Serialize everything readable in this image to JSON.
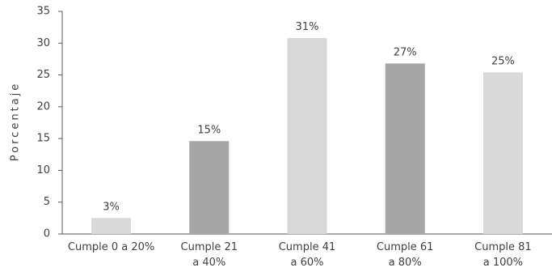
{
  "chart_data": {
    "type": "bar",
    "title": "",
    "xlabel": "",
    "ylabel": "Porcentaje",
    "ylim": [
      0,
      35
    ],
    "yticks": [
      "0",
      "5",
      "10",
      "15",
      "20",
      "25",
      "30",
      "35"
    ],
    "grid": false,
    "legend": "none",
    "categories": [
      [
        "Cumple 0 a 20%"
      ],
      [
        "Cumple 21",
        "a 40%"
      ],
      [
        "Cumple 41",
        "a 60%"
      ],
      [
        "Cumple 61",
        "a 80%"
      ],
      [
        "Cumple 81",
        "a 100%"
      ]
    ],
    "values": [
      2.5,
      14.6,
      30.8,
      26.8,
      25.4
    ],
    "data_labels": [
      "3%",
      "15%",
      "31%",
      "27%",
      "25%"
    ],
    "colors": [
      "#d9d9d9",
      "#a6a6a6",
      "#d9d9d9",
      "#a6a6a6",
      "#d9d9d9"
    ],
    "axis_color": "#595959"
  }
}
